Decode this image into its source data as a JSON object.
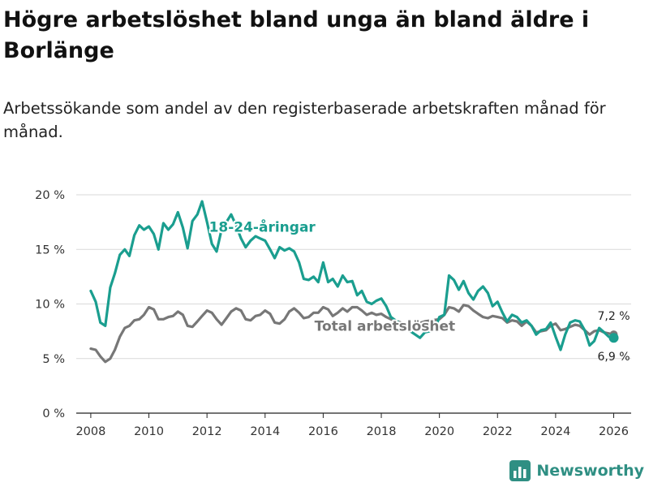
{
  "title": "Högre arbetslöshet bland unga än bland äldre i Borlänge",
  "subtitle": "Arbetssökande som andel av den registerbaserade arbetskraften månad för månad.",
  "brand": {
    "name": "Newsworthy",
    "icon": "bar-chart-logo-icon"
  },
  "colors": {
    "young": "#1a9e8f",
    "total": "#777777",
    "grid": "#d9d9d9",
    "axis": "#222222"
  },
  "chart_data": {
    "type": "line",
    "xlabel": "",
    "ylabel": "",
    "xlim": [
      2007.5,
      2026.6
    ],
    "ylim": [
      0,
      20
    ],
    "x_ticks": [
      2008,
      2010,
      2012,
      2014,
      2016,
      2018,
      2020,
      2022,
      2024,
      2026
    ],
    "x_tick_labels": [
      "2008",
      "2010",
      "2012",
      "2014",
      "2016",
      "2018",
      "2020",
      "2022",
      "2024",
      "2026"
    ],
    "y_ticks": [
      0,
      5,
      10,
      15,
      20
    ],
    "y_tick_labels": [
      "0 %",
      "5 %",
      "10 %",
      "15 %",
      "20 %"
    ],
    "series": [
      {
        "name": "18-24-åringar",
        "label": "18-24-åringar",
        "label_position": [
          2013.9,
          16.6
        ],
        "end_label": "6,9 %",
        "points": [
          [
            2008.0,
            11.2
          ],
          [
            2008.17,
            10.2
          ],
          [
            2008.33,
            8.3
          ],
          [
            2008.5,
            8.0
          ],
          [
            2008.67,
            11.5
          ],
          [
            2008.83,
            12.8
          ],
          [
            2009.0,
            14.5
          ],
          [
            2009.17,
            15.0
          ],
          [
            2009.33,
            14.4
          ],
          [
            2009.5,
            16.3
          ],
          [
            2009.67,
            17.2
          ],
          [
            2009.83,
            16.8
          ],
          [
            2010.0,
            17.1
          ],
          [
            2010.17,
            16.4
          ],
          [
            2010.33,
            15.0
          ],
          [
            2010.5,
            17.4
          ],
          [
            2010.67,
            16.8
          ],
          [
            2010.83,
            17.3
          ],
          [
            2011.0,
            18.4
          ],
          [
            2011.17,
            17.0
          ],
          [
            2011.33,
            15.1
          ],
          [
            2011.5,
            17.6
          ],
          [
            2011.67,
            18.2
          ],
          [
            2011.83,
            19.4
          ],
          [
            2012.0,
            17.5
          ],
          [
            2012.17,
            15.5
          ],
          [
            2012.33,
            14.8
          ],
          [
            2012.5,
            16.8
          ],
          [
            2012.67,
            17.5
          ],
          [
            2012.83,
            18.2
          ],
          [
            2013.0,
            17.2
          ],
          [
            2013.17,
            16.0
          ],
          [
            2013.33,
            15.2
          ],
          [
            2013.5,
            15.8
          ],
          [
            2013.67,
            16.2
          ],
          [
            2013.83,
            16.0
          ],
          [
            2014.0,
            15.8
          ],
          [
            2014.17,
            15.0
          ],
          [
            2014.33,
            14.2
          ],
          [
            2014.5,
            15.2
          ],
          [
            2014.67,
            14.9
          ],
          [
            2014.83,
            15.1
          ],
          [
            2015.0,
            14.8
          ],
          [
            2015.17,
            13.8
          ],
          [
            2015.33,
            12.3
          ],
          [
            2015.5,
            12.2
          ],
          [
            2015.67,
            12.5
          ],
          [
            2015.83,
            12.0
          ],
          [
            2016.0,
            13.8
          ],
          [
            2016.17,
            12.0
          ],
          [
            2016.33,
            12.3
          ],
          [
            2016.5,
            11.6
          ],
          [
            2016.67,
            12.6
          ],
          [
            2016.83,
            12.0
          ],
          [
            2017.0,
            12.1
          ],
          [
            2017.17,
            10.8
          ],
          [
            2017.33,
            11.2
          ],
          [
            2017.5,
            10.2
          ],
          [
            2017.67,
            10.0
          ],
          [
            2017.83,
            10.3
          ],
          [
            2018.0,
            10.5
          ],
          [
            2018.17,
            9.8
          ],
          [
            2018.33,
            8.8
          ],
          [
            2019.0,
            7.5
          ],
          [
            2019.33,
            6.9
          ],
          [
            2019.5,
            7.4
          ],
          [
            2019.83,
            7.6
          ],
          [
            2020.0,
            8.8
          ],
          [
            2020.17,
            9.0
          ],
          [
            2020.33,
            12.6
          ],
          [
            2020.5,
            12.2
          ],
          [
            2020.67,
            11.3
          ],
          [
            2020.83,
            12.1
          ],
          [
            2021.0,
            11.0
          ],
          [
            2021.17,
            10.4
          ],
          [
            2021.33,
            11.2
          ],
          [
            2021.5,
            11.6
          ],
          [
            2021.67,
            11.0
          ],
          [
            2021.83,
            9.8
          ],
          [
            2022.0,
            10.2
          ],
          [
            2022.17,
            9.2
          ],
          [
            2022.33,
            8.4
          ],
          [
            2022.5,
            9.0
          ],
          [
            2022.67,
            8.8
          ],
          [
            2022.83,
            8.3
          ],
          [
            2023.0,
            8.5
          ],
          [
            2023.17,
            8.0
          ],
          [
            2023.33,
            7.2
          ],
          [
            2023.5,
            7.6
          ],
          [
            2023.67,
            7.7
          ],
          [
            2023.83,
            8.3
          ],
          [
            2024.0,
            7.0
          ],
          [
            2024.17,
            5.8
          ],
          [
            2024.33,
            7.2
          ],
          [
            2024.5,
            8.3
          ],
          [
            2024.67,
            8.5
          ],
          [
            2024.83,
            8.4
          ],
          [
            2025.0,
            7.6
          ],
          [
            2025.17,
            6.2
          ],
          [
            2025.33,
            6.6
          ],
          [
            2025.5,
            7.8
          ],
          [
            2025.67,
            7.4
          ],
          [
            2025.83,
            7.0
          ],
          [
            2026.0,
            6.9
          ]
        ]
      },
      {
        "name": "Total arbetslöshet",
        "label": "Total arbetslöshet",
        "label_position": [
          2015.7,
          8.0
        ],
        "end_label": "7,2 %",
        "points": [
          [
            2008.0,
            5.9
          ],
          [
            2008.17,
            5.8
          ],
          [
            2008.33,
            5.2
          ],
          [
            2008.5,
            4.7
          ],
          [
            2008.67,
            5.0
          ],
          [
            2008.83,
            5.8
          ],
          [
            2009.0,
            7.0
          ],
          [
            2009.17,
            7.8
          ],
          [
            2009.33,
            8.0
          ],
          [
            2009.5,
            8.5
          ],
          [
            2009.67,
            8.6
          ],
          [
            2009.83,
            9.0
          ],
          [
            2010.0,
            9.7
          ],
          [
            2010.17,
            9.5
          ],
          [
            2010.33,
            8.6
          ],
          [
            2010.5,
            8.6
          ],
          [
            2010.67,
            8.8
          ],
          [
            2010.83,
            8.9
          ],
          [
            2011.0,
            9.3
          ],
          [
            2011.17,
            9.0
          ],
          [
            2011.33,
            8.0
          ],
          [
            2011.5,
            7.9
          ],
          [
            2011.67,
            8.4
          ],
          [
            2011.83,
            8.9
          ],
          [
            2012.0,
            9.4
          ],
          [
            2012.17,
            9.2
          ],
          [
            2012.33,
            8.6
          ],
          [
            2012.5,
            8.1
          ],
          [
            2012.67,
            8.7
          ],
          [
            2012.83,
            9.3
          ],
          [
            2013.0,
            9.6
          ],
          [
            2013.17,
            9.4
          ],
          [
            2013.33,
            8.6
          ],
          [
            2013.5,
            8.5
          ],
          [
            2013.67,
            8.9
          ],
          [
            2013.83,
            9.0
          ],
          [
            2014.0,
            9.4
          ],
          [
            2014.17,
            9.1
          ],
          [
            2014.33,
            8.3
          ],
          [
            2014.5,
            8.2
          ],
          [
            2014.67,
            8.6
          ],
          [
            2014.83,
            9.3
          ],
          [
            2015.0,
            9.6
          ],
          [
            2015.17,
            9.2
          ],
          [
            2015.33,
            8.7
          ],
          [
            2015.5,
            8.8
          ],
          [
            2015.67,
            9.2
          ],
          [
            2015.83,
            9.2
          ],
          [
            2016.0,
            9.7
          ],
          [
            2016.17,
            9.5
          ],
          [
            2016.33,
            8.9
          ],
          [
            2016.5,
            9.2
          ],
          [
            2016.67,
            9.6
          ],
          [
            2016.83,
            9.3
          ],
          [
            2017.0,
            9.7
          ],
          [
            2017.17,
            9.7
          ],
          [
            2017.33,
            9.4
          ],
          [
            2017.5,
            9.0
          ],
          [
            2017.67,
            9.2
          ],
          [
            2017.83,
            9.0
          ],
          [
            2018.0,
            9.1
          ],
          [
            2018.17,
            8.8
          ],
          [
            2018.33,
            8.6
          ],
          [
            2019.0,
            8.0
          ],
          [
            2019.5,
            8.4
          ],
          [
            2020.0,
            8.6
          ],
          [
            2020.17,
            9.0
          ],
          [
            2020.33,
            9.7
          ],
          [
            2020.5,
            9.6
          ],
          [
            2020.67,
            9.3
          ],
          [
            2020.83,
            9.9
          ],
          [
            2021.0,
            9.8
          ],
          [
            2021.17,
            9.4
          ],
          [
            2021.33,
            9.1
          ],
          [
            2021.5,
            8.8
          ],
          [
            2021.67,
            8.7
          ],
          [
            2021.83,
            8.9
          ],
          [
            2022.0,
            8.8
          ],
          [
            2022.17,
            8.7
          ],
          [
            2022.33,
            8.3
          ],
          [
            2022.5,
            8.5
          ],
          [
            2022.67,
            8.4
          ],
          [
            2022.83,
            8.0
          ],
          [
            2023.0,
            8.4
          ],
          [
            2023.17,
            8.0
          ],
          [
            2023.33,
            7.4
          ],
          [
            2023.5,
            7.5
          ],
          [
            2023.67,
            7.6
          ],
          [
            2023.83,
            8.0
          ],
          [
            2024.0,
            8.2
          ],
          [
            2024.17,
            7.6
          ],
          [
            2024.33,
            7.7
          ],
          [
            2024.5,
            7.9
          ],
          [
            2024.67,
            8.1
          ],
          [
            2024.83,
            8.0
          ],
          [
            2025.0,
            7.6
          ],
          [
            2025.17,
            7.2
          ],
          [
            2025.33,
            7.5
          ],
          [
            2025.5,
            7.6
          ],
          [
            2025.67,
            7.4
          ],
          [
            2025.83,
            7.3
          ],
          [
            2026.0,
            7.2
          ]
        ]
      }
    ]
  }
}
